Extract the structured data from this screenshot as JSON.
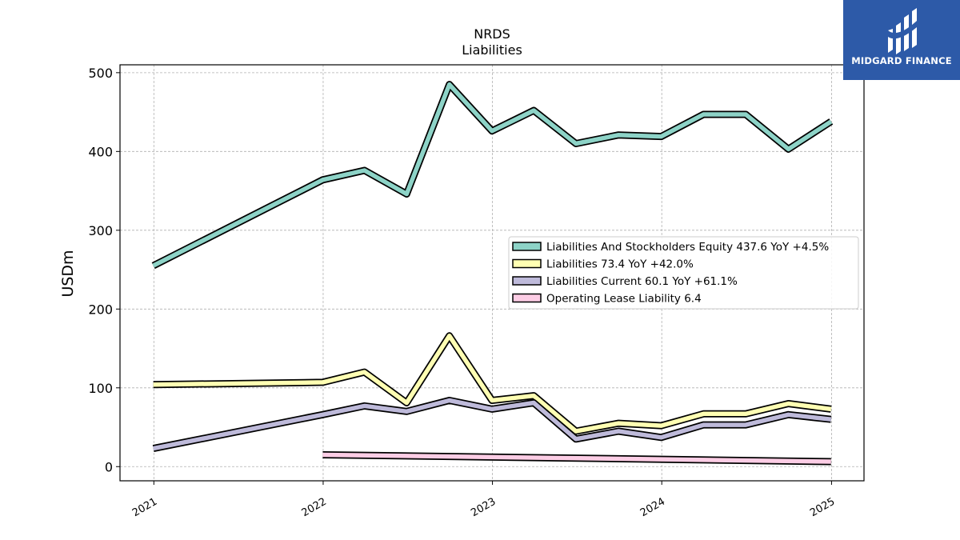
{
  "chart_data": {
    "type": "line",
    "title": "NRDS",
    "subtitle": "Liabilities",
    "ylabel": "USDm",
    "xlabel": "",
    "ylim": [
      -18,
      510
    ],
    "yticks": [
      0,
      100,
      200,
      300,
      400,
      500
    ],
    "xticks": [
      "2021",
      "2022",
      "2023",
      "2024",
      "2025"
    ],
    "grid": true,
    "legend_position": "center-right",
    "series": [
      {
        "name": "Liabilities And Stockholders Equity",
        "legend": "Liabilities And Stockholders Equity  437.6 YoY +4.5%",
        "color": "#8dd3c7",
        "points": [
          [
            "2020-12-31",
            255
          ],
          [
            "2021-12-31",
            364
          ],
          [
            "2022-03-31",
            376
          ],
          [
            "2022-06-30",
            346
          ],
          [
            "2022-09-30",
            485
          ],
          [
            "2022-12-31",
            426
          ],
          [
            "2023-03-31",
            452
          ],
          [
            "2023-06-30",
            410
          ],
          [
            "2023-09-30",
            421
          ],
          [
            "2023-12-31",
            419
          ],
          [
            "2024-03-31",
            447
          ],
          [
            "2024-06-30",
            447
          ],
          [
            "2024-09-30",
            403
          ],
          [
            "2024-12-31",
            438
          ]
        ]
      },
      {
        "name": "Liabilities",
        "legend": "Liabilities  73.4 YoY +42.0%",
        "color": "#ffffb3",
        "points": [
          [
            "2020-12-31",
            104
          ],
          [
            "2021-12-31",
            107
          ],
          [
            "2022-03-31",
            120
          ],
          [
            "2022-06-30",
            81
          ],
          [
            "2022-09-30",
            166
          ],
          [
            "2022-12-31",
            84
          ],
          [
            "2023-03-31",
            90
          ],
          [
            "2023-06-30",
            45
          ],
          [
            "2023-09-30",
            55
          ],
          [
            "2023-12-31",
            52
          ],
          [
            "2024-03-31",
            67
          ],
          [
            "2024-06-30",
            67
          ],
          [
            "2024-09-30",
            80
          ],
          [
            "2024-12-31",
            73
          ]
        ]
      },
      {
        "name": "Liabilities Current",
        "legend": "Liabilities Current  60.1 YoY +61.1%",
        "color": "#bebada",
        "points": [
          [
            "2020-12-31",
            23
          ],
          [
            "2021-12-31",
            66
          ],
          [
            "2022-03-31",
            77
          ],
          [
            "2022-06-30",
            70
          ],
          [
            "2022-09-30",
            84
          ],
          [
            "2022-12-31",
            73
          ],
          [
            "2023-03-31",
            81
          ],
          [
            "2023-06-30",
            35
          ],
          [
            "2023-09-30",
            45
          ],
          [
            "2023-12-31",
            37
          ],
          [
            "2024-03-31",
            53
          ],
          [
            "2024-06-30",
            53
          ],
          [
            "2024-09-30",
            66
          ],
          [
            "2024-12-31",
            60
          ]
        ]
      },
      {
        "name": "Operating Lease Liability",
        "legend": "Operating Lease Liability  6.4",
        "color": "#fccde5",
        "points": [
          [
            "2021-12-31",
            15
          ],
          [
            "2024-12-31",
            6.4
          ]
        ]
      }
    ]
  },
  "logo": {
    "text": "MIDGARD FINANCE",
    "background": "#2d5aa8"
  }
}
